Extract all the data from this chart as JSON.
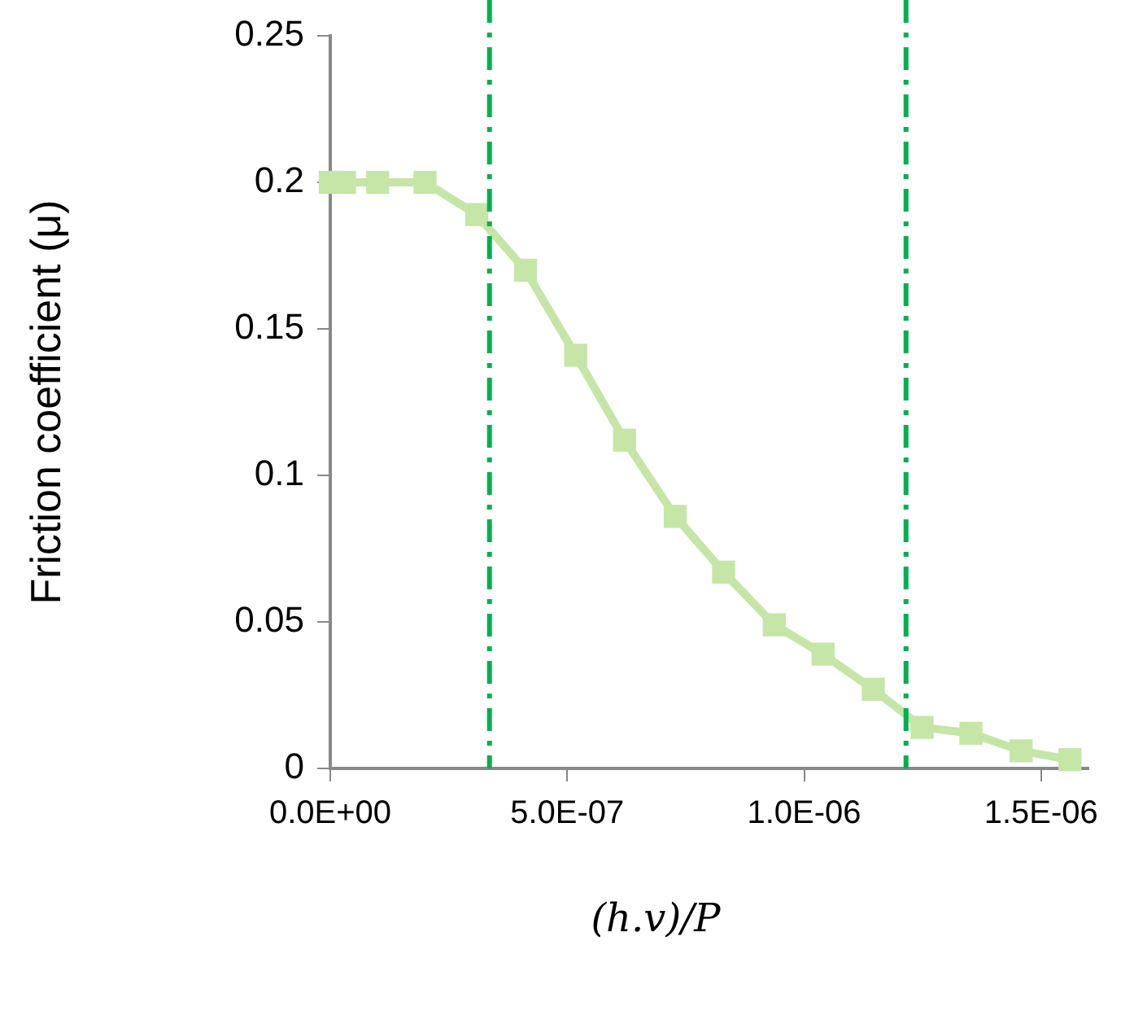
{
  "chart_data": {
    "type": "line",
    "xlabel": "(h.v)/P",
    "ylabel": "Friction coefficient (μ)",
    "series": [
      {
        "color": "#c5e6a6",
        "x": [
          0,
          3e-08,
          1e-07,
          2e-07,
          3.09e-07,
          4.12e-07,
          5.18e-07,
          6.21e-07,
          7.28e-07,
          8.3e-07,
          9.37e-07,
          1.04e-06,
          1.146e-06,
          1.249e-06,
          1.352e-06,
          1.458e-06,
          1.561e-06
        ],
        "values": [
          0.2,
          0.2,
          0.2,
          0.2,
          0.189,
          0.17,
          0.141,
          0.112,
          0.086,
          0.067,
          0.049,
          0.039,
          0.027,
          0.014,
          0.012,
          0.006,
          0.003
        ]
      }
    ],
    "xlim": [
      0,
      1.6e-06
    ],
    "xticks": [
      {
        "value": 0,
        "label": "0.0E+00"
      },
      {
        "value": 5e-07,
        "label": "5.0E-07"
      },
      {
        "value": 1e-06,
        "label": "1.0E-06"
      },
      {
        "value": 1.5e-06,
        "label": "1.5E-06"
      }
    ],
    "ylim": [
      0,
      0.25
    ],
    "yticks": [
      0,
      0.05,
      0.1,
      0.15,
      0.2,
      0.25
    ],
    "ref_lines": [
      {
        "axis": "x",
        "value": 3.36e-07,
        "color": "#00b050",
        "line_style": "dashdot"
      },
      {
        "axis": "x",
        "value": 1.215e-06,
        "color": "#00b050",
        "line_style": "dashdot"
      }
    ],
    "grid": false,
    "legend": false,
    "marker": "square",
    "line_style": "solid"
  }
}
